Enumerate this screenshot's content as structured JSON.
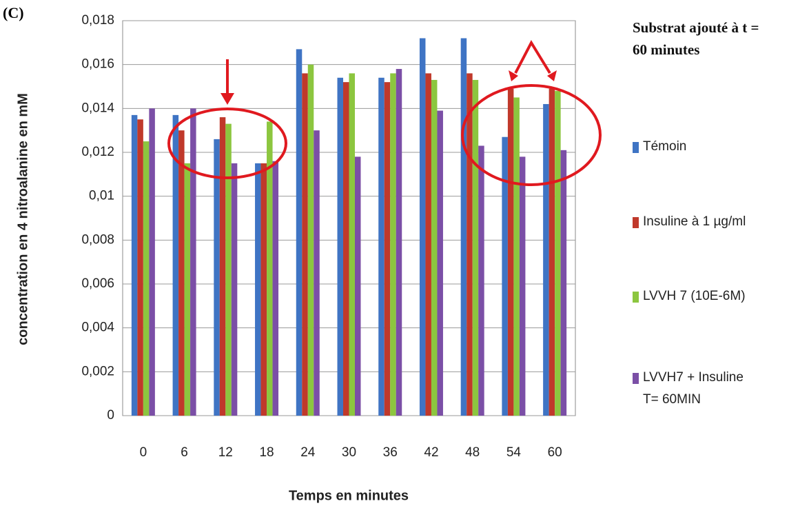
{
  "chart_data": {
    "type": "bar",
    "panel_label": "(C)",
    "title": "Substrat ajouté à t = 60 minutes",
    "x_label": "Temps en minutes",
    "y_label": "concentration en 4 nitroalanine   en mM",
    "categories": [
      "0",
      "6",
      "12",
      "18",
      "24",
      "30",
      "36",
      "42",
      "48",
      "54",
      "60"
    ],
    "series": [
      {
        "name": "Témoin",
        "color": "#3f74c4",
        "values": [
          0.0137,
          0.0137,
          0.0126,
          0.0115,
          0.0167,
          0.0154,
          0.0154,
          0.0172,
          0.0172,
          0.0127,
          0.0142
        ]
      },
      {
        "name": "Insuline à 1  µg/ml",
        "color": "#c0392b",
        "values": [
          0.0135,
          0.013,
          0.0136,
          0.0115,
          0.0156,
          0.0152,
          0.0152,
          0.0156,
          0.0156,
          0.0149,
          0.0149
        ]
      },
      {
        "name": "LVVH 7  (10E-6M)",
        "color": "#8cc63f",
        "values": [
          0.0125,
          0.0115,
          0.0133,
          0.0134,
          0.016,
          0.0156,
          0.0156,
          0.0153,
          0.0153,
          0.0145,
          0.0148
        ]
      },
      {
        "name": "LVVH7 + Insuline T= 60MIN",
        "color": "#7b4fa6",
        "values": [
          0.014,
          0.014,
          0.0115,
          0.0116,
          0.013,
          0.0118,
          0.0158,
          0.0139,
          0.0123,
          0.0118,
          0.0121
        ]
      }
    ],
    "ylim": [
      0,
      0.018
    ],
    "yticks": [
      0,
      {
        "value": 0.002,
        "label": "0,002"
      },
      {
        "value": 0.004,
        "label": "0,004"
      },
      {
        "value": 0.006,
        "label": "0,006"
      },
      {
        "value": 0.008,
        "label": "0,008"
      },
      {
        "value": 0.01,
        "label": "0,01"
      },
      {
        "value": 0.012,
        "label": "0,012"
      },
      {
        "value": 0.014,
        "label": "0,014"
      },
      {
        "value": 0.016,
        "label": "0,016"
      },
      {
        "value": 0.018,
        "label": "0,018"
      }
    ],
    "grid": true,
    "legend": "right"
  }
}
